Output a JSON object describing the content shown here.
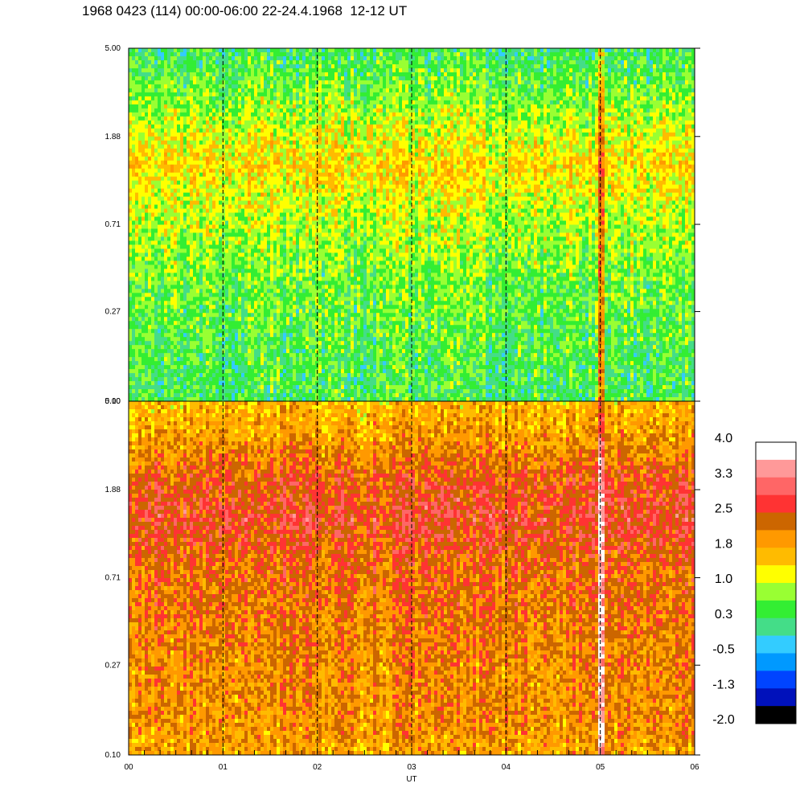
{
  "title": "1968 0423 (114) 00:00-06:00 22-24.4.1968  12-12 UT",
  "chart_data": [
    {
      "type": "heatmap",
      "panel": "upper",
      "x_range": [
        "00",
        "06"
      ],
      "y_ticks": [
        "5.00",
        "1.88",
        "0.71",
        "0.27",
        "0.10"
      ],
      "y_scale": "log",
      "y_range": [
        0.1,
        5.0
      ],
      "vertical_markers": [
        "01",
        "02",
        "03",
        "04",
        "05"
      ],
      "dominant_levels_by_row": [
        0.3,
        0.6,
        1.0,
        1.4,
        1.0,
        0.8,
        0.6,
        0.5,
        0.4,
        0.35
      ],
      "hot_spot_at_x": "05"
    },
    {
      "type": "heatmap",
      "panel": "lower",
      "x_range": [
        "00",
        "06"
      ],
      "y_ticks": [
        "5.00",
        "1.88",
        "0.71",
        "0.27",
        "0.10"
      ],
      "y_scale": "log",
      "y_range": [
        0.1,
        5.0
      ],
      "vertical_markers": [
        "01",
        "02",
        "03",
        "04",
        "05"
      ],
      "dominant_levels_by_row": [
        1.6,
        1.9,
        2.4,
        2.6,
        2.3,
        2.2,
        2.1,
        2.0,
        2.0,
        1.8
      ],
      "hot_spot_at_x": "05"
    }
  ],
  "x_ticks": [
    "00",
    "01",
    "02",
    "03",
    "04",
    "05",
    "06"
  ],
  "x_label": "UT",
  "colorbar": {
    "labels": [
      "4.0",
      "3.3",
      "2.5",
      "1.8",
      "1.0",
      "0.3",
      "-0.5",
      "-1.3",
      "-2.0"
    ],
    "colors": [
      "#ffffff",
      "#ff9999",
      "#ff6666",
      "#ff3333",
      "#cc6600",
      "#ff9900",
      "#ffbb00",
      "#ffff00",
      "#99ff33",
      "#33ee33",
      "#44dd88",
      "#33ccff",
      "#0099ff",
      "#0044ff",
      "#0011bb",
      "#000000"
    ]
  }
}
